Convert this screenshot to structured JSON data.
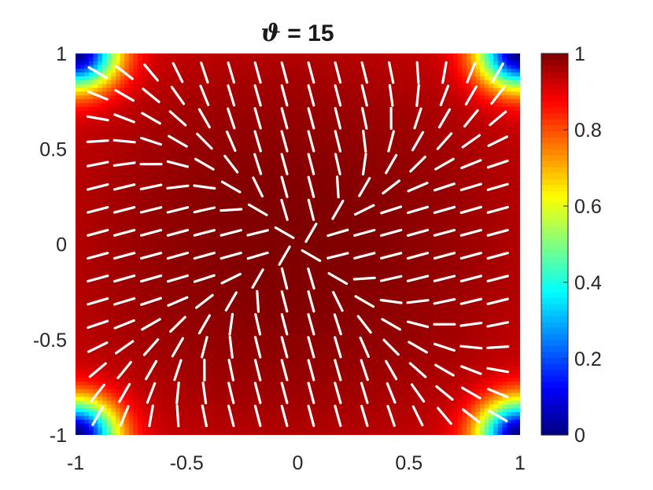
{
  "chart_data": {
    "type": "heatmap",
    "title_symbol": "ϑ",
    "title_rest": " = 15",
    "xlim": [
      -1,
      1
    ],
    "ylim": [
      -1,
      1
    ],
    "xticks": [
      -1,
      -0.5,
      0,
      0.5,
      1
    ],
    "yticks": [
      -1,
      -0.5,
      0,
      0.5,
      1
    ],
    "xtick_labels": [
      "-1",
      "-0.5",
      "0",
      "0.5",
      "1"
    ],
    "ytick_labels": [
      "-1",
      "-0.5",
      "0",
      "0.5",
      "1"
    ],
    "colorbar": {
      "colormap": "jet",
      "range": [
        0,
        1
      ],
      "ticks": [
        0,
        0.2,
        0.4,
        0.6,
        0.8,
        1
      ],
      "tick_labels": [
        "0",
        "0.2",
        "0.4",
        "0.6",
        "0.8",
        "1"
      ]
    },
    "field": {
      "description_of_surface": "scalar order parameter, ~1 in interior, drops to 0 at the four corners",
      "corner_defects": [
        [
          -1,
          -1
        ],
        [
          -1,
          1
        ],
        [
          1,
          -1
        ],
        [
          1,
          1
        ]
      ],
      "director_twist_deg": 15,
      "director_color": "#ffffff"
    },
    "grid": false,
    "legend": "none"
  }
}
